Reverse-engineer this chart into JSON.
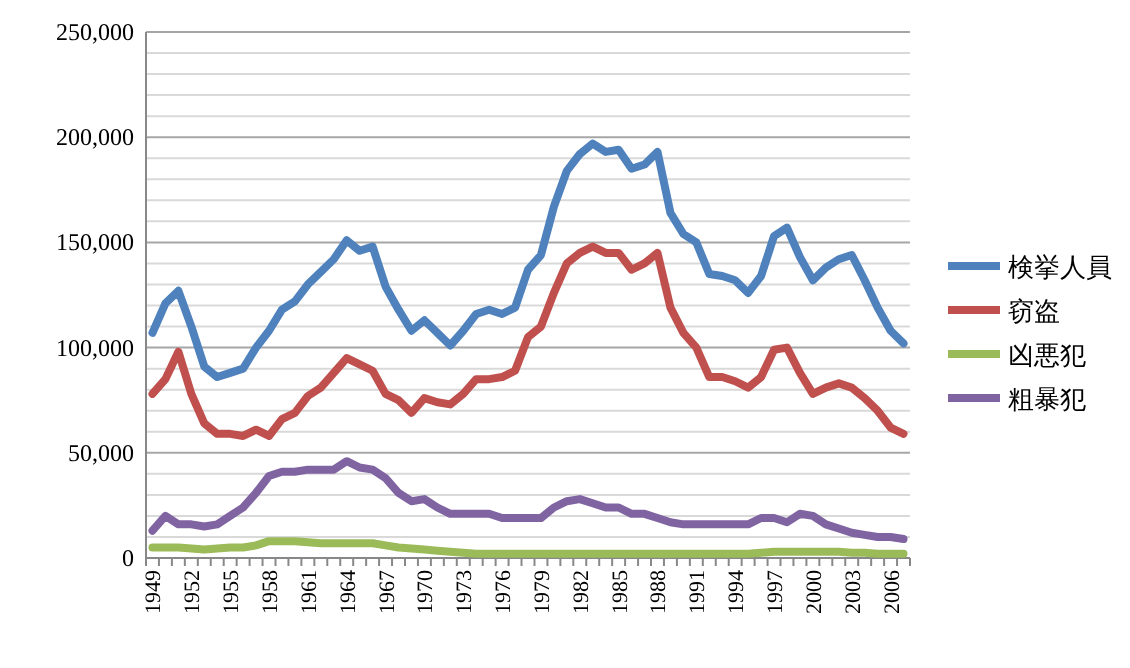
{
  "chart_data": {
    "type": "line",
    "categories": [
      "1949",
      null,
      null,
      "1952",
      null,
      null,
      "1955",
      null,
      null,
      "1958",
      null,
      null,
      "1961",
      null,
      null,
      "1964",
      null,
      null,
      "1967",
      null,
      null,
      "1970",
      null,
      null,
      "1973",
      null,
      null,
      "1976",
      null,
      null,
      "1979",
      null,
      null,
      "1982",
      null,
      null,
      "1985",
      null,
      null,
      "1988",
      null,
      null,
      "1991",
      null,
      null,
      "1994",
      null,
      null,
      "1997",
      null,
      null,
      "2000",
      null,
      null,
      "2003",
      null,
      null,
      "2006",
      null
    ],
    "series": [
      {
        "name": "検挙人員",
        "color": "#4f81bd",
        "values": [
          107000,
          121000,
          127000,
          110000,
          91000,
          86000,
          88000,
          90000,
          100000,
          108000,
          118000,
          122000,
          130000,
          136000,
          142000,
          151000,
          146000,
          148000,
          129000,
          118000,
          108000,
          113000,
          107000,
          101000,
          108000,
          116000,
          118000,
          116000,
          119000,
          137000,
          144000,
          167000,
          184000,
          192000,
          197000,
          193000,
          194000,
          185000,
          187000,
          193000,
          164000,
          154000,
          150000,
          135000,
          134000,
          132000,
          126000,
          134000,
          153000,
          157000,
          143000,
          132000,
          138000,
          142000,
          144000,
          132000,
          119000,
          108000,
          102000
        ]
      },
      {
        "name": "窃盗",
        "color": "#c0504d",
        "values": [
          78000,
          85000,
          98000,
          78000,
          64000,
          59000,
          59000,
          58000,
          61000,
          58000,
          66000,
          69000,
          77000,
          81000,
          88000,
          95000,
          92000,
          89000,
          78000,
          75000,
          69000,
          76000,
          74000,
          73000,
          78000,
          85000,
          85000,
          86000,
          89000,
          105000,
          110000,
          126000,
          140000,
          145000,
          148000,
          145000,
          145000,
          137000,
          140000,
          145000,
          119000,
          107000,
          100000,
          86000,
          86000,
          84000,
          81000,
          86000,
          99000,
          100000,
          88000,
          78000,
          81000,
          83000,
          81000,
          76000,
          70000,
          62000,
          59000
        ]
      },
      {
        "name": "凶悪犯",
        "color": "#9bbb59",
        "values": [
          5000,
          5000,
          5000,
          4500,
          4000,
          4500,
          5000,
          5000,
          6000,
          8000,
          8000,
          8000,
          7500,
          7000,
          7000,
          7000,
          7000,
          7000,
          6000,
          5000,
          4500,
          4000,
          3500,
          3000,
          2500,
          2000,
          2000,
          2000,
          2000,
          2000,
          2000,
          2000,
          2000,
          2000,
          2000,
          2000,
          2000,
          2000,
          2000,
          2000,
          2000,
          2000,
          2000,
          2000,
          2000,
          2000,
          2000,
          2500,
          3000,
          3000,
          3000,
          3000,
          3000,
          3000,
          2500,
          2500,
          2000,
          2000,
          2000
        ]
      },
      {
        "name": "粗暴犯",
        "color": "#8064a2",
        "values": [
          13000,
          20000,
          16000,
          16000,
          15000,
          16000,
          20000,
          24000,
          31000,
          39000,
          41000,
          41000,
          42000,
          42000,
          42000,
          46000,
          43000,
          42000,
          38000,
          31000,
          27000,
          28000,
          24000,
          21000,
          21000,
          21000,
          21000,
          19000,
          19000,
          19000,
          19000,
          24000,
          27000,
          28000,
          26000,
          24000,
          24000,
          21000,
          21000,
          19000,
          17000,
          16000,
          16000,
          16000,
          16000,
          16000,
          16000,
          19000,
          19000,
          17000,
          21000,
          20000,
          16000,
          14000,
          12000,
          11000,
          10000,
          10000,
          9000
        ]
      }
    ],
    "ylim": [
      0,
      250000
    ],
    "yticks": [
      0,
      {
        "value": 10000,
        "label": null
      },
      {
        "value": 20000,
        "label": null
      },
      {
        "value": 30000,
        "label": null
      },
      {
        "value": 40000,
        "label": null
      },
      {
        "value": 50000,
        "label": "50,000"
      },
      {
        "value": 60000,
        "label": null
      },
      {
        "value": 70000,
        "label": null
      },
      {
        "value": 80000,
        "label": null
      },
      {
        "value": 90000,
        "label": null
      },
      {
        "value": 100000,
        "label": "100,000"
      },
      {
        "value": 110000,
        "label": null
      },
      {
        "value": 120000,
        "label": null
      },
      {
        "value": 130000,
        "label": null
      },
      {
        "value": 140000,
        "label": null
      },
      {
        "value": 150000,
        "label": "150,000"
      },
      {
        "value": 160000,
        "label": null
      },
      {
        "value": 170000,
        "label": null
      },
      {
        "value": 180000,
        "label": null
      },
      {
        "value": 190000,
        "label": null
      },
      {
        "value": 200000,
        "label": "200,000"
      },
      {
        "value": 210000,
        "label": null
      },
      {
        "value": 220000,
        "label": null
      },
      {
        "value": 230000,
        "label": null
      },
      {
        "value": 240000,
        "label": null
      },
      {
        "value": 250000,
        "label": "250,000"
      }
    ],
    "grid": "y",
    "legend": "right",
    "marker": "none",
    "line_style": "solid"
  }
}
